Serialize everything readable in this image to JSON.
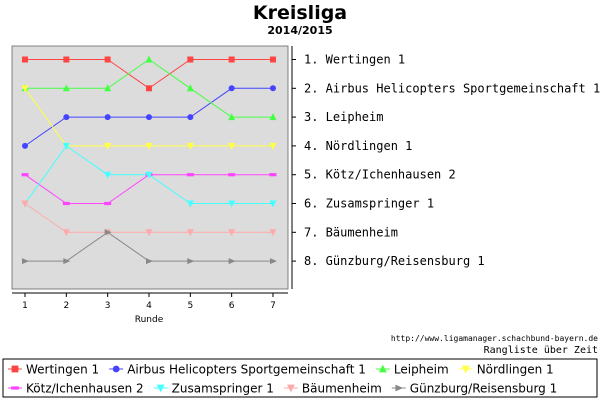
{
  "chart_data": {
    "type": "line",
    "title": "Kreisliga",
    "subtitle": "2014/2015",
    "xlabel": "Runde",
    "ylabel": "",
    "x": [
      1,
      2,
      3,
      4,
      5,
      6,
      7
    ],
    "ylim": [
      9,
      0
    ],
    "y_inverted": true,
    "rank_labels": [
      "1. Wertingen 1",
      "2. Airbus Helicopters Sportgemeinschaft 1",
      "3. Leipheim",
      "4. Nördlingen 1",
      "5. Kötz/Ichenhausen 2",
      "6. Zusamspringer 1",
      "7. Bäumenheim",
      "8. Günzburg/Reisensburg 1"
    ],
    "series": [
      {
        "name": "Wertingen 1",
        "color": "#ff4444",
        "marker": "square",
        "values": [
          1,
          1,
          1,
          2,
          1,
          1,
          1
        ]
      },
      {
        "name": "Airbus Helicopters Sportgemeinschaft 1",
        "color": "#4444ff",
        "marker": "circle",
        "values": [
          4,
          3,
          3,
          3,
          3,
          2,
          2
        ]
      },
      {
        "name": "Leipheim",
        "color": "#44ff44",
        "marker": "triangle-up",
        "values": [
          2,
          2,
          2,
          1,
          2,
          3,
          3
        ]
      },
      {
        "name": "Nördlingen 1",
        "color": "#ffff44",
        "marker": "triangle-down",
        "values": [
          2,
          4,
          4,
          4,
          4,
          4,
          4
        ]
      },
      {
        "name": "Kötz/Ichenhausen 2",
        "color": "#ff44ff",
        "marker": "dash",
        "values": [
          5,
          6,
          6,
          5,
          5,
          5,
          5
        ]
      },
      {
        "name": "Zusamspringer 1",
        "color": "#44ffff",
        "marker": "triangle-down",
        "values": [
          6,
          4,
          5,
          5,
          6,
          6,
          6
        ]
      },
      {
        "name": "Bäumenheim",
        "color": "#ffaaaa",
        "marker": "triangle-down",
        "values": [
          6,
          7,
          7,
          7,
          7,
          7,
          7
        ]
      },
      {
        "name": "Günzburg/Reisensburg 1",
        "color": "#888888",
        "marker": "triangle-right",
        "values": [
          8,
          8,
          7,
          8,
          8,
          8,
          8
        ]
      }
    ],
    "grid": false,
    "plot_background": "#dcdcdc",
    "legend_position": "bottom"
  },
  "credit": "http://www.ligamanager.schachbund-bayern.de",
  "note": "Rangliste über Zeit"
}
